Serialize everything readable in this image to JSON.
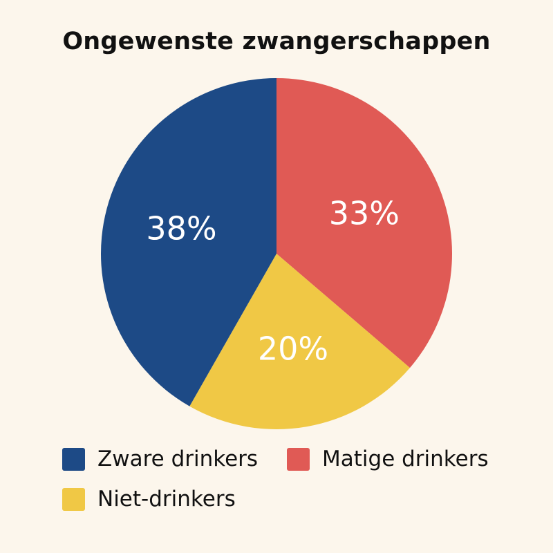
{
  "chart_data": {
    "type": "pie",
    "title": "Ongewenste zwangerschappen",
    "unit": "%",
    "slices": [
      {
        "name": "Matige drinkers",
        "value": 33,
        "label": "33%",
        "color": "#e05a55"
      },
      {
        "name": "Niet-drinkers",
        "value": 20,
        "label": "20%",
        "color": "#f0c845"
      },
      {
        "name": "Zware drinkers",
        "value": 38,
        "label": "38%",
        "color": "#1d4a86"
      }
    ],
    "legend": {
      "placement": "bottom",
      "order": [
        "Zware drinkers",
        "Matige drinkers",
        "Niet-drinkers"
      ]
    },
    "label_color": "#ffffff"
  }
}
